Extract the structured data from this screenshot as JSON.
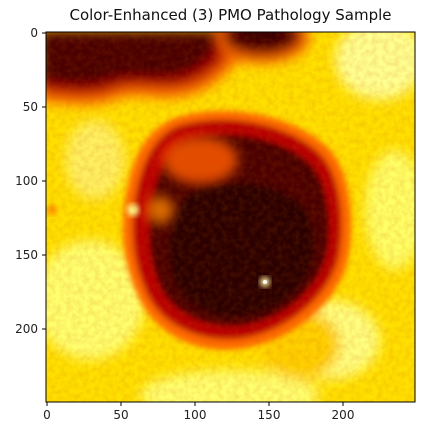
{
  "title": "Color-Enhanced (3) PMO Pathology Sample",
  "colormap": "hot",
  "colors": {
    "dark": "#3a0000",
    "red": "#a50000",
    "orange": "#ff6a00",
    "yellow": "#ffd800",
    "pale": "#ffff66",
    "highlight": "#ffffd8"
  },
  "x_ticks": [
    "0",
    "50",
    "100",
    "150",
    "200"
  ],
  "y_ticks": [
    "0",
    "50",
    "100",
    "150",
    "200"
  ],
  "image_extent": {
    "width": 250,
    "height": 250
  }
}
